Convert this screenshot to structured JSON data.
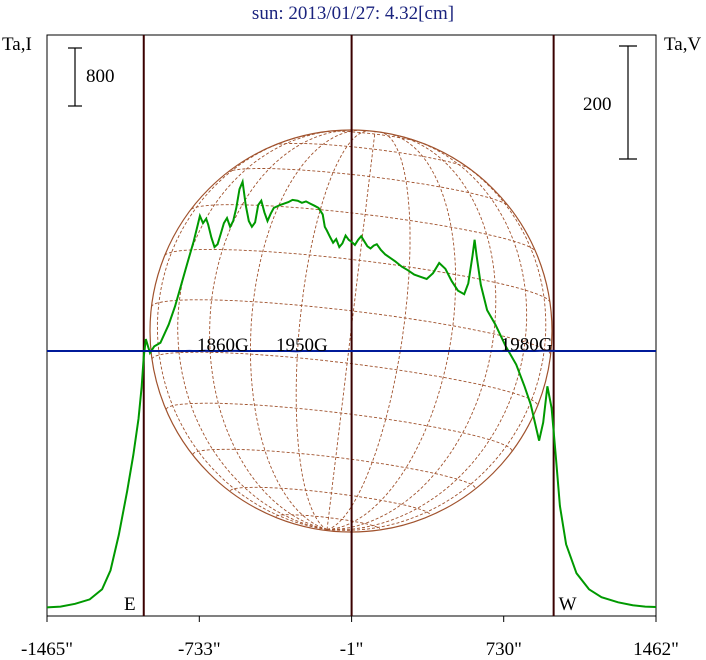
{
  "chart_data": {
    "type": "line",
    "title": "sun: 2013/01/27: 4.32[cm]",
    "y_label_left": "Ta,I",
    "y_label_right": "Ta,V",
    "scale_bar_left": "800",
    "scale_bar_right": "200",
    "x_ticks": [
      {
        "label": "-1465\"",
        "value": -1465
      },
      {
        "label": "-733\"",
        "value": -733
      },
      {
        "label": "-1\"",
        "value": -1
      },
      {
        "label": "730\"",
        "value": 730
      },
      {
        "label": "1462\"",
        "value": 1462
      }
    ],
    "xlim": [
      -1465,
      1462
    ],
    "vertical_lines": [
      {
        "label": "E",
        "x": -1000
      },
      {
        "label": "",
        "x": -1
      },
      {
        "label": "W",
        "x": 970
      }
    ],
    "annotations": [
      {
        "text": "1860G",
        "x": -620,
        "y": 1.42
      },
      {
        "text": "1950G",
        "x": -240,
        "y": -1.55
      },
      {
        "text": "1980G",
        "x": 840,
        "y": 1.85
      }
    ],
    "series": [
      {
        "key": "stokes_I",
        "color": "#009900",
        "values": [
          [
            -1465,
            50
          ],
          [
            -1400,
            60
          ],
          [
            -1330,
            100
          ],
          [
            -1260,
            160
          ],
          [
            -1200,
            300
          ],
          [
            -1160,
            560
          ],
          [
            -1120,
            1050
          ],
          [
            -1080,
            1650
          ],
          [
            -1050,
            2150
          ],
          [
            -1025,
            2650
          ],
          [
            -1010,
            3100
          ],
          [
            -1000,
            3500
          ],
          [
            -990,
            3750
          ],
          [
            -970,
            3560
          ],
          [
            -950,
            3650
          ],
          [
            -920,
            3700
          ],
          [
            -880,
            3950
          ],
          [
            -850,
            4200
          ],
          [
            -820,
            4500
          ],
          [
            -790,
            4800
          ],
          [
            -760,
            5100
          ],
          [
            -740,
            5330
          ],
          [
            -730,
            5450
          ],
          [
            -715,
            5350
          ],
          [
            -700,
            5410
          ],
          [
            -690,
            5330
          ],
          [
            -675,
            5150
          ],
          [
            -660,
            5020
          ],
          [
            -645,
            5060
          ],
          [
            -630,
            5200
          ],
          [
            -615,
            5350
          ],
          [
            -600,
            5420
          ],
          [
            -585,
            5300
          ],
          [
            -570,
            5380
          ],
          [
            -555,
            5560
          ],
          [
            -540,
            5820
          ],
          [
            -525,
            5920
          ],
          [
            -510,
            5600
          ],
          [
            -495,
            5380
          ],
          [
            -480,
            5300
          ],
          [
            -465,
            5360
          ],
          [
            -450,
            5600
          ],
          [
            -435,
            5660
          ],
          [
            -420,
            5500
          ],
          [
            -405,
            5380
          ],
          [
            -390,
            5480
          ],
          [
            -375,
            5560
          ],
          [
            -360,
            5580
          ],
          [
            -345,
            5600
          ],
          [
            -325,
            5620
          ],
          [
            -305,
            5640
          ],
          [
            -285,
            5670
          ],
          [
            -260,
            5660
          ],
          [
            -240,
            5630
          ],
          [
            -220,
            5650
          ],
          [
            -200,
            5620
          ],
          [
            -180,
            5590
          ],
          [
            -160,
            5560
          ],
          [
            -140,
            5470
          ],
          [
            -130,
            5300
          ],
          [
            -120,
            5250
          ],
          [
            -105,
            5160
          ],
          [
            -90,
            5080
          ],
          [
            -75,
            5130
          ],
          [
            -60,
            5020
          ],
          [
            -45,
            5070
          ],
          [
            -30,
            5180
          ],
          [
            -15,
            5120
          ],
          [
            0,
            5090
          ],
          [
            15,
            5050
          ],
          [
            30,
            5120
          ],
          [
            45,
            5170
          ],
          [
            60,
            5100
          ],
          [
            75,
            5030
          ],
          [
            90,
            5000
          ],
          [
            105,
            5040
          ],
          [
            120,
            5060
          ],
          [
            140,
            4980
          ],
          [
            160,
            4920
          ],
          [
            185,
            4870
          ],
          [
            210,
            4820
          ],
          [
            240,
            4750
          ],
          [
            270,
            4700
          ],
          [
            300,
            4640
          ],
          [
            330,
            4610
          ],
          [
            360,
            4580
          ],
          [
            390,
            4660
          ],
          [
            420,
            4800
          ],
          [
            450,
            4720
          ],
          [
            480,
            4550
          ],
          [
            510,
            4420
          ],
          [
            540,
            4370
          ],
          [
            560,
            4520
          ],
          [
            580,
            4900
          ],
          [
            590,
            5120
          ],
          [
            600,
            4900
          ],
          [
            620,
            4500
          ],
          [
            650,
            4150
          ],
          [
            690,
            3950
          ],
          [
            740,
            3650
          ],
          [
            790,
            3400
          ],
          [
            830,
            3100
          ],
          [
            860,
            2850
          ],
          [
            880,
            2600
          ],
          [
            900,
            2350
          ],
          [
            920,
            2600
          ],
          [
            940,
            3100
          ],
          [
            960,
            2800
          ],
          [
            980,
            2150
          ],
          [
            1000,
            1450
          ],
          [
            1030,
            920
          ],
          [
            1080,
            520
          ],
          [
            1140,
            300
          ],
          [
            1200,
            190
          ],
          [
            1280,
            120
          ],
          [
            1350,
            80
          ],
          [
            1410,
            60
          ],
          [
            1462,
            55
          ]
        ]
      },
      {
        "key": "stokes_V",
        "color": "#001a99",
        "values": [
          [
            -1465,
            0
          ],
          [
            -1200,
            0
          ],
          [
            -1150,
            0.02
          ],
          [
            -1110,
            0.08
          ],
          [
            -1080,
            0.03
          ],
          [
            -1050,
            0.1
          ],
          [
            -1020,
            0.3
          ],
          [
            -1000,
            0.18
          ],
          [
            -980,
            0.08
          ],
          [
            -950,
            0.15
          ],
          [
            -920,
            0.2
          ],
          [
            -890,
            0.12
          ],
          [
            -860,
            0.02
          ],
          [
            -830,
            0.08
          ],
          [
            -800,
            0.3
          ],
          [
            -780,
            0.45
          ],
          [
            -765,
            0.22
          ],
          [
            -750,
            0.03
          ],
          [
            -730,
            0.2
          ],
          [
            -715,
            0.8
          ],
          [
            -705,
            1.45
          ],
          [
            -695,
            0.8
          ],
          [
            -680,
            0.1
          ],
          [
            -665,
            -0.2
          ],
          [
            -645,
            0.05
          ],
          [
            -625,
            -0.1
          ],
          [
            -605,
            0.1
          ],
          [
            -585,
            0.35
          ],
          [
            -570,
            0.62
          ],
          [
            -555,
            0.32
          ],
          [
            -540,
            0.02
          ],
          [
            -525,
            -0.1
          ],
          [
            -505,
            -0.25
          ],
          [
            -485,
            -0.05
          ],
          [
            -465,
            -0.12
          ],
          [
            -445,
            0.08
          ],
          [
            -425,
            -0.02
          ],
          [
            -405,
            -0.12
          ],
          [
            -385,
            -0.1
          ],
          [
            -360,
            -0.05
          ],
          [
            -340,
            -0.25
          ],
          [
            -320,
            -0.08
          ],
          [
            -300,
            -0.22
          ],
          [
            -285,
            -0.55
          ],
          [
            -270,
            -1.2
          ],
          [
            -262,
            -1.5
          ],
          [
            -252,
            -0.75
          ],
          [
            -240,
            -0.1
          ],
          [
            -220,
            0.1
          ],
          [
            -200,
            -0.05
          ],
          [
            -180,
            -0.15
          ],
          [
            -160,
            -0.1
          ],
          [
            -140,
            0.1
          ],
          [
            -115,
            0.18
          ],
          [
            -95,
            -0.05
          ],
          [
            -80,
            -0.12
          ],
          [
            -60,
            -0.05
          ],
          [
            -40,
            0.04
          ],
          [
            -20,
            -0.05
          ],
          [
            0,
            0
          ],
          [
            20,
            -0.12
          ],
          [
            40,
            0.05
          ],
          [
            60,
            -0.06
          ],
          [
            80,
            0.02
          ],
          [
            100,
            -0.04
          ],
          [
            120,
            0.06
          ],
          [
            140,
            -0.08
          ],
          [
            160,
            -0.04
          ],
          [
            180,
            -0.12
          ],
          [
            200,
            -0.02
          ],
          [
            220,
            -0.06
          ],
          [
            240,
            0.02
          ],
          [
            260,
            -0.06
          ],
          [
            280,
            0.04
          ],
          [
            300,
            0.02
          ],
          [
            320,
            0
          ],
          [
            340,
            0.04
          ],
          [
            360,
            0.02
          ],
          [
            380,
            0.06
          ],
          [
            400,
            0.02
          ],
          [
            420,
            0.08
          ],
          [
            440,
            0.04
          ],
          [
            460,
            0.25
          ],
          [
            470,
            0.3
          ],
          [
            485,
            0.65
          ],
          [
            498,
            0.1
          ],
          [
            508,
            -0.2
          ],
          [
            518,
            0.3
          ],
          [
            530,
            -0.3
          ],
          [
            550,
            0.05
          ],
          [
            570,
            0.1
          ],
          [
            590,
            0.0
          ],
          [
            610,
            0.05
          ],
          [
            630,
            -0.02
          ],
          [
            660,
            0.1
          ],
          [
            690,
            0.05
          ],
          [
            720,
            0.02
          ],
          [
            750,
            -0.02
          ],
          [
            780,
            0.05
          ],
          [
            800,
            -0.02
          ],
          [
            820,
            0.08
          ],
          [
            840,
            0.1
          ],
          [
            860,
            0.05
          ],
          [
            880,
            0.2
          ],
          [
            900,
            0.35
          ],
          [
            918,
            1.1
          ],
          [
            930,
            1.75
          ],
          [
            942,
            1.6
          ],
          [
            955,
            0.8
          ],
          [
            970,
            0.4
          ],
          [
            985,
            0.2
          ],
          [
            1000,
            0.08
          ],
          [
            1030,
            0.02
          ],
          [
            1080,
            0
          ],
          [
            1200,
            0
          ],
          [
            1462,
            0
          ]
        ]
      }
    ]
  }
}
